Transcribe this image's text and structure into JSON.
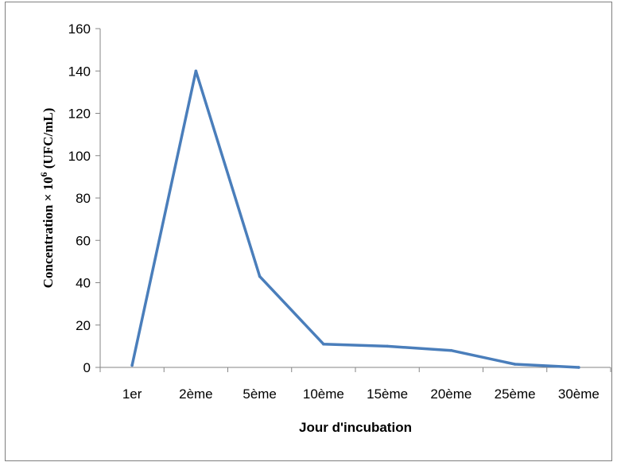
{
  "chart_data": {
    "type": "line",
    "title": "",
    "xlabel": "Jour d'incubation",
    "ylabel": "Concentration × 10",
    "ylabel_sup": "6",
    "ylabel_unit": " (UFC/mL)",
    "categories": [
      "1er",
      "2ème",
      "5ème",
      "10ème",
      "15ème",
      "20ème",
      "25ème",
      "30ème"
    ],
    "series": [
      {
        "values": [
          1,
          140,
          43,
          11,
          10,
          8,
          1.5,
          0
        ],
        "color": "#4a7ebb"
      }
    ],
    "ylim": [
      0,
      160
    ],
    "yticks": [
      0,
      20,
      40,
      60,
      80,
      100,
      120,
      140,
      160
    ],
    "grid": false,
    "legend": "none"
  }
}
